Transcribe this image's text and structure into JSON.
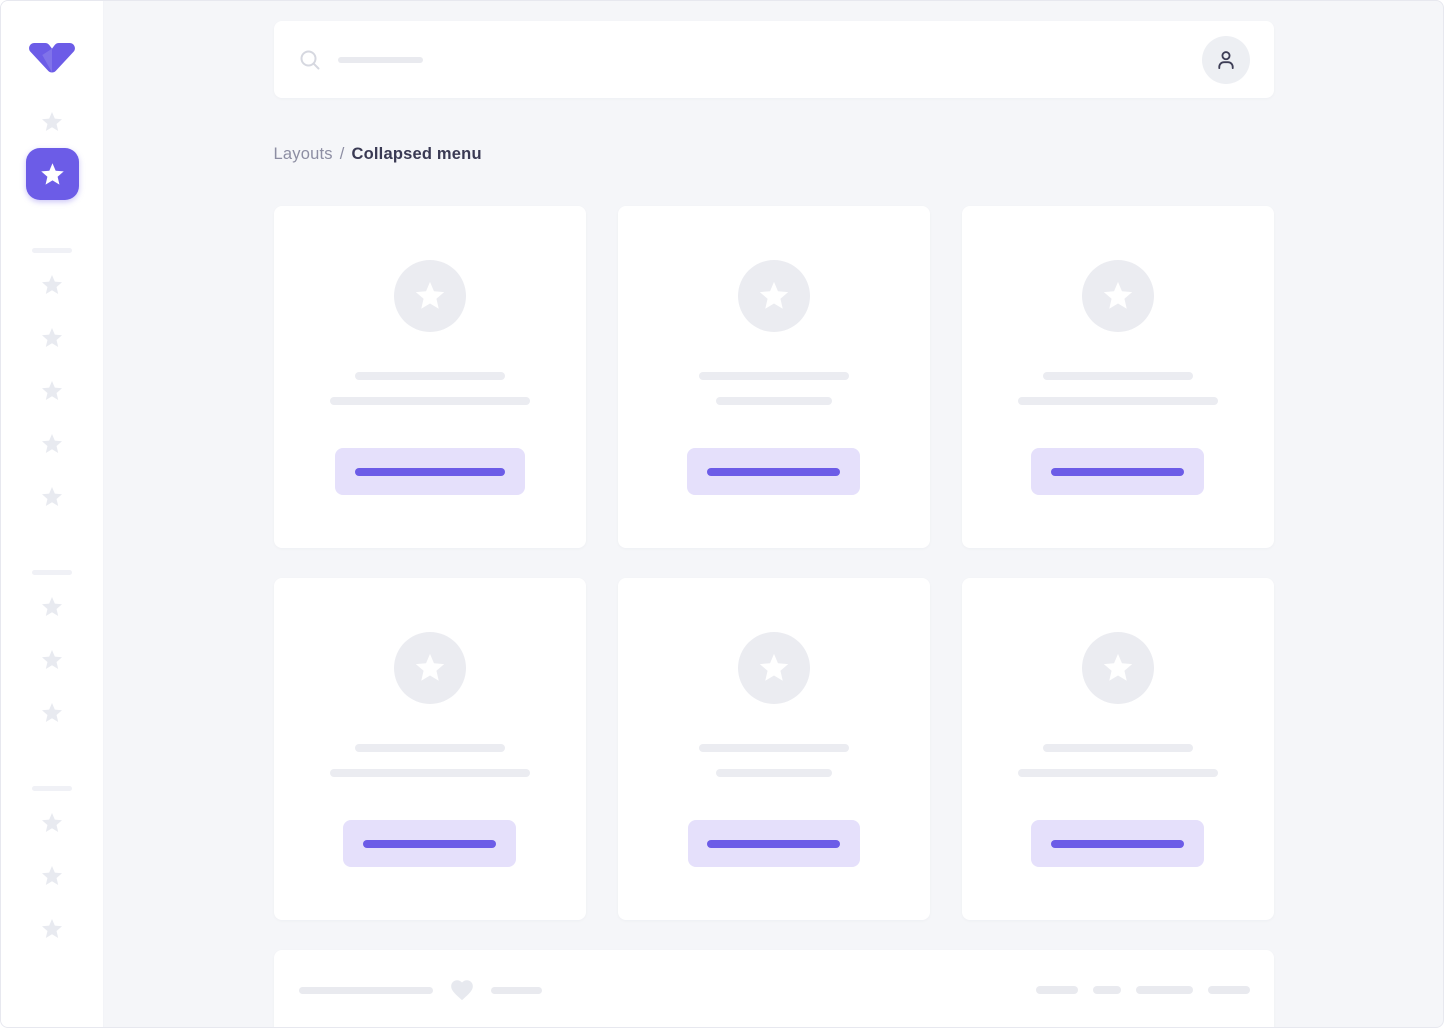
{
  "colors": {
    "primary": "#6C5CE7",
    "primary_soft": "#E5E0FB",
    "surface": "#FFFFFF",
    "background": "#F5F6F9",
    "skeleton": "#EBECF1",
    "skeleton_soft": "#E9EAEF",
    "divider": "#F0F1F6",
    "star_muted": "#E8EAF0",
    "avatar_bg": "#EDEFF3",
    "icon_dark": "#3E3E56",
    "icon_light": "#D6D8E0",
    "text_muted": "#8D8EA3",
    "text_dark": "#3A3A54",
    "frame_border": "#E7E8EF",
    "heart": "#E7E9EF"
  },
  "sidebar": {
    "logo_icon": "vuestic-v-logo",
    "item_icon": "star-icon",
    "top_items": [
      {
        "icon": "star-icon",
        "active": false
      },
      {
        "icon": "star-icon",
        "active": true
      }
    ],
    "groups": [
      {
        "divider": true,
        "count": 5
      },
      {
        "divider": true,
        "count": 3
      },
      {
        "divider": true,
        "count": 3
      }
    ]
  },
  "header": {
    "search_icon": "search-icon",
    "search_placeholder_width": 85,
    "avatar_icon": "person-icon"
  },
  "breadcrumb": {
    "section": "Layouts",
    "separator": "/",
    "current": "Collapsed menu"
  },
  "cards": [
    {
      "icon": "star-icon",
      "title_w": 150,
      "subtitle_w": 200,
      "button_w": 190,
      "button_bar_w": 150
    },
    {
      "icon": "star-icon",
      "title_w": 150,
      "subtitle_w": 116,
      "button_w": 173,
      "button_bar_w": 133
    },
    {
      "icon": "star-icon",
      "title_w": 150,
      "subtitle_w": 200,
      "button_w": 173,
      "button_bar_w": 133
    },
    {
      "icon": "star-icon",
      "title_w": 150,
      "subtitle_w": 200,
      "button_w": 173,
      "button_bar_w": 133
    },
    {
      "icon": "star-icon",
      "title_w": 150,
      "subtitle_w": 116,
      "button_w": 172,
      "button_bar_w": 133
    },
    {
      "icon": "star-icon",
      "title_w": 150,
      "subtitle_w": 200,
      "button_w": 173,
      "button_bar_w": 133
    }
  ],
  "footer": {
    "heart_icon": "heart-icon",
    "left_lines": [
      134,
      51
    ],
    "right_pills": [
      42,
      28,
      57,
      42
    ]
  }
}
